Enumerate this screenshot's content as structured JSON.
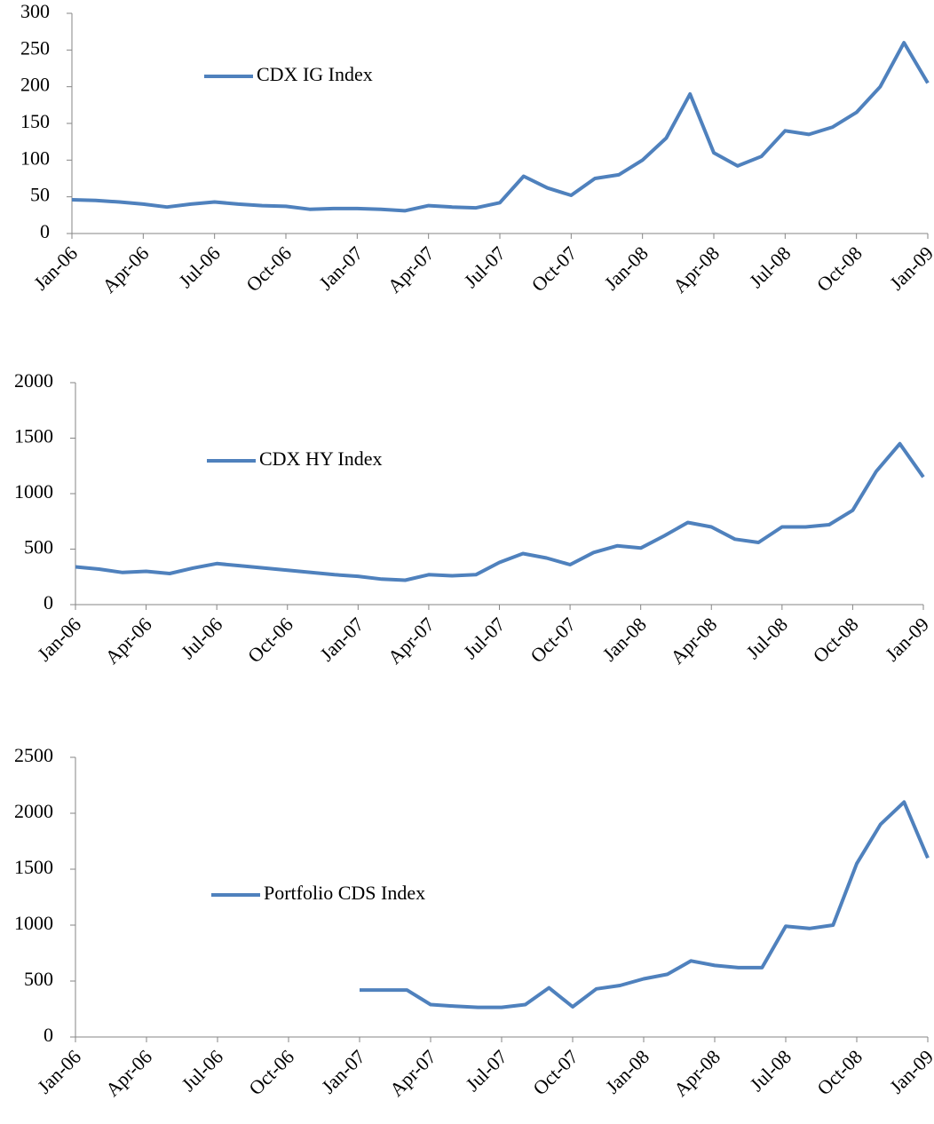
{
  "chart_data": [
    {
      "type": "line",
      "x": [
        "2006-01",
        "2006-02",
        "2006-03",
        "2006-04",
        "2006-05",
        "2006-06",
        "2006-07",
        "2006-08",
        "2006-09",
        "2006-10",
        "2006-11",
        "2006-12",
        "2007-01",
        "2007-02",
        "2007-03",
        "2007-04",
        "2007-05",
        "2007-06",
        "2007-07",
        "2007-08",
        "2007-09",
        "2007-10",
        "2007-11",
        "2007-12",
        "2008-01",
        "2008-02",
        "2008-03",
        "2008-04",
        "2008-05",
        "2008-06",
        "2008-07",
        "2008-08",
        "2008-09",
        "2008-10",
        "2008-11",
        "2008-12",
        "2009-01"
      ],
      "series": [
        {
          "name": "CDX IG Index",
          "color": "#4f81bd",
          "values": [
            46,
            45,
            43,
            40,
            36,
            40,
            43,
            40,
            38,
            37,
            33,
            34,
            34,
            33,
            31,
            38,
            36,
            35,
            42,
            78,
            62,
            52,
            75,
            80,
            100,
            130,
            190,
            110,
            92,
            105,
            140,
            135,
            145,
            165,
            200,
            260,
            205
          ]
        }
      ],
      "xlim": [
        "2006-01",
        "2009-01"
      ],
      "xticks": [
        {
          "value": "2006-01",
          "label": "Jan-06"
        },
        {
          "value": "2006-04",
          "label": "Apr-06"
        },
        {
          "value": "2006-07",
          "label": "Jul-06"
        },
        {
          "value": "2006-10",
          "label": "Oct-06"
        },
        {
          "value": "2007-01",
          "label": "Jan-07"
        },
        {
          "value": "2007-04",
          "label": "Apr-07"
        },
        {
          "value": "2007-07",
          "label": "Jul-07"
        },
        {
          "value": "2007-10",
          "label": "Oct-07"
        },
        {
          "value": "2008-01",
          "label": "Jan-08"
        },
        {
          "value": "2008-04",
          "label": "Apr-08"
        },
        {
          "value": "2008-07",
          "label": "Jul-08"
        },
        {
          "value": "2008-10",
          "label": "Oct-08"
        },
        {
          "value": "2009-01",
          "label": "Jan-09"
        }
      ],
      "ylim": [
        0,
        300
      ],
      "yticks": [
        0,
        50,
        100,
        150,
        200,
        250,
        300
      ]
    },
    {
      "type": "line",
      "x": [
        "2006-01",
        "2006-02",
        "2006-03",
        "2006-04",
        "2006-05",
        "2006-06",
        "2006-07",
        "2006-08",
        "2006-09",
        "2006-10",
        "2006-11",
        "2006-12",
        "2007-01",
        "2007-02",
        "2007-03",
        "2007-04",
        "2007-05",
        "2007-06",
        "2007-07",
        "2007-08",
        "2007-09",
        "2007-10",
        "2007-11",
        "2007-12",
        "2008-01",
        "2008-02",
        "2008-03",
        "2008-04",
        "2008-05",
        "2008-06",
        "2008-07",
        "2008-08",
        "2008-09",
        "2008-10",
        "2008-11",
        "2008-12",
        "2009-01"
      ],
      "series": [
        {
          "name": "CDX HY Index",
          "color": "#4f81bd",
          "values": [
            340,
            320,
            290,
            300,
            280,
            330,
            370,
            350,
            330,
            310,
            290,
            270,
            255,
            230,
            220,
            270,
            260,
            270,
            380,
            460,
            420,
            360,
            470,
            530,
            510,
            620,
            740,
            700,
            590,
            560,
            700,
            700,
            720,
            850,
            1200,
            1450,
            1150
          ]
        }
      ],
      "xlim": [
        "2006-01",
        "2009-01"
      ],
      "xticks": [
        {
          "value": "2006-01",
          "label": "Jan-06"
        },
        {
          "value": "2006-04",
          "label": "Apr-06"
        },
        {
          "value": "2006-07",
          "label": "Jul-06"
        },
        {
          "value": "2006-10",
          "label": "Oct-06"
        },
        {
          "value": "2007-01",
          "label": "Jan-07"
        },
        {
          "value": "2007-04",
          "label": "Apr-07"
        },
        {
          "value": "2007-07",
          "label": "Jul-07"
        },
        {
          "value": "2007-10",
          "label": "Oct-07"
        },
        {
          "value": "2008-01",
          "label": "Jan-08"
        },
        {
          "value": "2008-04",
          "label": "Apr-08"
        },
        {
          "value": "2008-07",
          "label": "Jul-08"
        },
        {
          "value": "2008-10",
          "label": "Oct-08"
        },
        {
          "value": "2009-01",
          "label": "Jan-09"
        }
      ],
      "ylim": [
        0,
        2000
      ],
      "yticks": [
        0,
        500,
        1000,
        1500,
        2000
      ]
    },
    {
      "type": "line",
      "x": [
        "2006-01",
        "2006-02",
        "2006-03",
        "2006-04",
        "2006-05",
        "2006-06",
        "2006-07",
        "2006-08",
        "2006-09",
        "2006-10",
        "2006-11",
        "2006-12",
        "2007-01",
        "2007-02",
        "2007-03",
        "2007-04",
        "2007-05",
        "2007-06",
        "2007-07",
        "2007-08",
        "2007-09",
        "2007-10",
        "2007-11",
        "2007-12",
        "2008-01",
        "2008-02",
        "2008-03",
        "2008-04",
        "2008-05",
        "2008-06",
        "2008-07",
        "2008-08",
        "2008-09",
        "2008-10",
        "2008-11",
        "2008-12",
        "2009-01"
      ],
      "series": [
        {
          "name": "Portfolio CDS Index",
          "color": "#4f81bd",
          "values": [
            null,
            null,
            null,
            null,
            null,
            null,
            null,
            null,
            null,
            null,
            null,
            null,
            420,
            420,
            420,
            290,
            275,
            265,
            265,
            290,
            440,
            270,
            430,
            460,
            520,
            560,
            680,
            640,
            620,
            620,
            990,
            970,
            1000,
            1550,
            1900,
            2100,
            1600
          ]
        }
      ],
      "xlim": [
        "2006-01",
        "2009-01"
      ],
      "xticks": [
        {
          "value": "2006-01",
          "label": "Jan-06"
        },
        {
          "value": "2006-04",
          "label": "Apr-06"
        },
        {
          "value": "2006-07",
          "label": "Jul-06"
        },
        {
          "value": "2006-10",
          "label": "Oct-06"
        },
        {
          "value": "2007-01",
          "label": "Jan-07"
        },
        {
          "value": "2007-04",
          "label": "Apr-07"
        },
        {
          "value": "2007-07",
          "label": "Jul-07"
        },
        {
          "value": "2007-10",
          "label": "Oct-07"
        },
        {
          "value": "2008-01",
          "label": "Jan-08"
        },
        {
          "value": "2008-04",
          "label": "Apr-08"
        },
        {
          "value": "2008-07",
          "label": "Jul-08"
        },
        {
          "value": "2008-10",
          "label": "Oct-08"
        },
        {
          "value": "2009-01",
          "label": "Jan-09"
        }
      ],
      "ylim": [
        0,
        2500
      ],
      "yticks": [
        0,
        500,
        1000,
        1500,
        2000,
        2500
      ]
    }
  ]
}
